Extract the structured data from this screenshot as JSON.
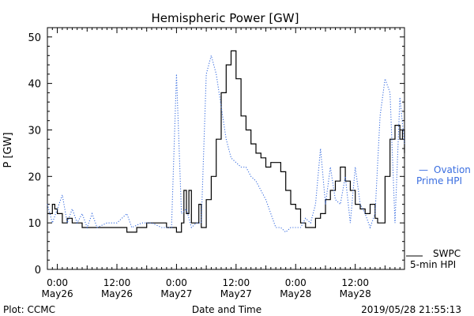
{
  "chart_data": {
    "type": "line",
    "title": "Hemispheric Power [GW]",
    "xlabel": "Date and Time",
    "ylabel": "P [GW]",
    "ylim": [
      0,
      52
    ],
    "y_ticks": [
      0,
      10,
      20,
      30,
      40,
      50
    ],
    "xlim": [
      "2019-05-25T22:00",
      "2019-05-28T21:55"
    ],
    "x_ticks": [
      {
        "t": "2019-05-26T00:00",
        "line1": "0:00",
        "line2": "May26"
      },
      {
        "t": "2019-05-26T12:00",
        "line1": "12:00",
        "line2": "May26"
      },
      {
        "t": "2019-05-27T00:00",
        "line1": "0:00",
        "line2": "May27"
      },
      {
        "t": "2019-05-27T12:00",
        "line1": "12:00",
        "line2": "May27"
      },
      {
        "t": "2019-05-28T00:00",
        "line1": "0:00",
        "line2": "May28"
      },
      {
        "t": "2019-05-28T12:00",
        "line1": "12:00",
        "line2": "May28"
      }
    ],
    "series": [
      {
        "name": "SWPC 5-min HPI",
        "color": "#000000",
        "style": "solid-step",
        "points": [
          [
            "2019-05-25T22:00",
            12
          ],
          [
            "2019-05-25T23:00",
            14
          ],
          [
            "2019-05-25T23:30",
            13
          ],
          [
            "2019-05-26T00:00",
            12
          ],
          [
            "2019-05-26T01:00",
            10
          ],
          [
            "2019-05-26T02:00",
            11
          ],
          [
            "2019-05-26T03:00",
            10
          ],
          [
            "2019-05-26T04:00",
            10
          ],
          [
            "2019-05-26T05:00",
            9
          ],
          [
            "2019-05-26T07:00",
            9
          ],
          [
            "2019-05-26T09:00",
            9
          ],
          [
            "2019-05-26T11:00",
            9
          ],
          [
            "2019-05-26T13:00",
            9
          ],
          [
            "2019-05-26T14:00",
            8
          ],
          [
            "2019-05-26T16:00",
            9
          ],
          [
            "2019-05-26T18:00",
            10
          ],
          [
            "2019-05-26T20:00",
            10
          ],
          [
            "2019-05-26T22:00",
            9
          ],
          [
            "2019-05-27T00:00",
            8
          ],
          [
            "2019-05-27T01:00",
            10
          ],
          [
            "2019-05-27T01:30",
            17
          ],
          [
            "2019-05-27T02:00",
            12
          ],
          [
            "2019-05-27T02:30",
            17
          ],
          [
            "2019-05-27T03:00",
            10
          ],
          [
            "2019-05-27T04:00",
            10
          ],
          [
            "2019-05-27T04:30",
            14
          ],
          [
            "2019-05-27T05:00",
            9
          ],
          [
            "2019-05-27T06:00",
            15
          ],
          [
            "2019-05-27T07:00",
            20
          ],
          [
            "2019-05-27T08:00",
            28
          ],
          [
            "2019-05-27T09:00",
            38
          ],
          [
            "2019-05-27T10:00",
            44
          ],
          [
            "2019-05-27T11:00",
            47
          ],
          [
            "2019-05-27T12:00",
            41
          ],
          [
            "2019-05-27T13:00",
            33
          ],
          [
            "2019-05-27T14:00",
            30
          ],
          [
            "2019-05-27T15:00",
            27
          ],
          [
            "2019-05-27T16:00",
            25
          ],
          [
            "2019-05-27T17:00",
            24
          ],
          [
            "2019-05-27T18:00",
            22
          ],
          [
            "2019-05-27T19:00",
            23
          ],
          [
            "2019-05-27T20:00",
            23
          ],
          [
            "2019-05-27T21:00",
            21
          ],
          [
            "2019-05-27T22:00",
            17
          ],
          [
            "2019-05-27T23:00",
            14
          ],
          [
            "2019-05-28T00:00",
            13
          ],
          [
            "2019-05-28T01:00",
            10
          ],
          [
            "2019-05-28T02:00",
            9
          ],
          [
            "2019-05-28T03:00",
            9
          ],
          [
            "2019-05-28T04:00",
            11
          ],
          [
            "2019-05-28T05:00",
            12
          ],
          [
            "2019-05-28T06:00",
            15
          ],
          [
            "2019-05-28T07:00",
            17
          ],
          [
            "2019-05-28T08:00",
            19
          ],
          [
            "2019-05-28T09:00",
            22
          ],
          [
            "2019-05-28T10:00",
            19
          ],
          [
            "2019-05-28T11:00",
            17
          ],
          [
            "2019-05-28T12:00",
            14
          ],
          [
            "2019-05-28T13:00",
            13
          ],
          [
            "2019-05-28T14:00",
            12
          ],
          [
            "2019-05-28T15:00",
            14
          ],
          [
            "2019-05-28T16:00",
            11
          ],
          [
            "2019-05-28T16:30",
            10
          ],
          [
            "2019-05-28T17:00",
            10
          ],
          [
            "2019-05-28T18:00",
            20
          ],
          [
            "2019-05-28T19:00",
            28
          ],
          [
            "2019-05-28T20:00",
            31
          ],
          [
            "2019-05-28T21:00",
            28
          ],
          [
            "2019-05-28T21:30",
            30
          ],
          [
            "2019-05-28T21:55",
            25
          ]
        ]
      },
      {
        "name": "Ovation Prime HPI",
        "color": "#3a6ee0",
        "style": "dotted",
        "points": [
          [
            "2019-05-25T22:00",
            14
          ],
          [
            "2019-05-25T23:00",
            10
          ],
          [
            "2019-05-26T00:00",
            13
          ],
          [
            "2019-05-26T01:00",
            16
          ],
          [
            "2019-05-26T02:00",
            10
          ],
          [
            "2019-05-26T03:00",
            13
          ],
          [
            "2019-05-26T04:00",
            10
          ],
          [
            "2019-05-26T05:00",
            12
          ],
          [
            "2019-05-26T06:00",
            9
          ],
          [
            "2019-05-26T07:00",
            12
          ],
          [
            "2019-05-26T08:00",
            9
          ],
          [
            "2019-05-26T10:00",
            10
          ],
          [
            "2019-05-26T12:00",
            10
          ],
          [
            "2019-05-26T14:00",
            12
          ],
          [
            "2019-05-26T15:00",
            9
          ],
          [
            "2019-05-26T17:00",
            10
          ],
          [
            "2019-05-26T19:00",
            10
          ],
          [
            "2019-05-26T21:00",
            9
          ],
          [
            "2019-05-26T23:00",
            9
          ],
          [
            "2019-05-27T00:00",
            42
          ],
          [
            "2019-05-27T01:00",
            12
          ],
          [
            "2019-05-27T02:00",
            13
          ],
          [
            "2019-05-27T03:00",
            9
          ],
          [
            "2019-05-27T04:00",
            10
          ],
          [
            "2019-05-27T05:00",
            10
          ],
          [
            "2019-05-27T06:00",
            42
          ],
          [
            "2019-05-27T07:00",
            46
          ],
          [
            "2019-05-27T08:00",
            42
          ],
          [
            "2019-05-27T09:00",
            35
          ],
          [
            "2019-05-27T10:00",
            28
          ],
          [
            "2019-05-27T11:00",
            24
          ],
          [
            "2019-05-27T12:00",
            23
          ],
          [
            "2019-05-27T13:00",
            22
          ],
          [
            "2019-05-27T14:00",
            22
          ],
          [
            "2019-05-27T15:00",
            20
          ],
          [
            "2019-05-27T16:00",
            19
          ],
          [
            "2019-05-27T17:00",
            17
          ],
          [
            "2019-05-27T18:00",
            15
          ],
          [
            "2019-05-27T19:00",
            12
          ],
          [
            "2019-05-27T20:00",
            9
          ],
          [
            "2019-05-27T21:00",
            9
          ],
          [
            "2019-05-27T22:00",
            8
          ],
          [
            "2019-05-27T23:00",
            9
          ],
          [
            "2019-05-28T00:00",
            9
          ],
          [
            "2019-05-28T01:00",
            9
          ],
          [
            "2019-05-28T02:00",
            11
          ],
          [
            "2019-05-28T03:00",
            10
          ],
          [
            "2019-05-28T04:00",
            14
          ],
          [
            "2019-05-28T05:00",
            26
          ],
          [
            "2019-05-28T06:00",
            14
          ],
          [
            "2019-05-28T07:00",
            22
          ],
          [
            "2019-05-28T08:00",
            15
          ],
          [
            "2019-05-28T09:00",
            14
          ],
          [
            "2019-05-28T10:00",
            20
          ],
          [
            "2019-05-28T11:00",
            10
          ],
          [
            "2019-05-28T12:00",
            22
          ],
          [
            "2019-05-28T13:00",
            14
          ],
          [
            "2019-05-28T14:00",
            12
          ],
          [
            "2019-05-28T15:00",
            9
          ],
          [
            "2019-05-28T16:00",
            12
          ],
          [
            "2019-05-28T17:00",
            33
          ],
          [
            "2019-05-28T18:00",
            41
          ],
          [
            "2019-05-28T19:00",
            38
          ],
          [
            "2019-05-28T20:00",
            10
          ],
          [
            "2019-05-28T21:00",
            37
          ],
          [
            "2019-05-28T21:55",
            27
          ]
        ]
      }
    ],
    "legend": [
      {
        "dash": "—",
        "line1": "Ovation",
        "line2": "Prime HPI",
        "color": "#3a6ee0"
      },
      {
        "line1": "SWPC",
        "line2": "5-min HPI",
        "color": "#000000"
      }
    ]
  },
  "footer": {
    "plot_credit": "Plot: CCMC",
    "timestamp": "2019/05/28 21:55:13"
  }
}
